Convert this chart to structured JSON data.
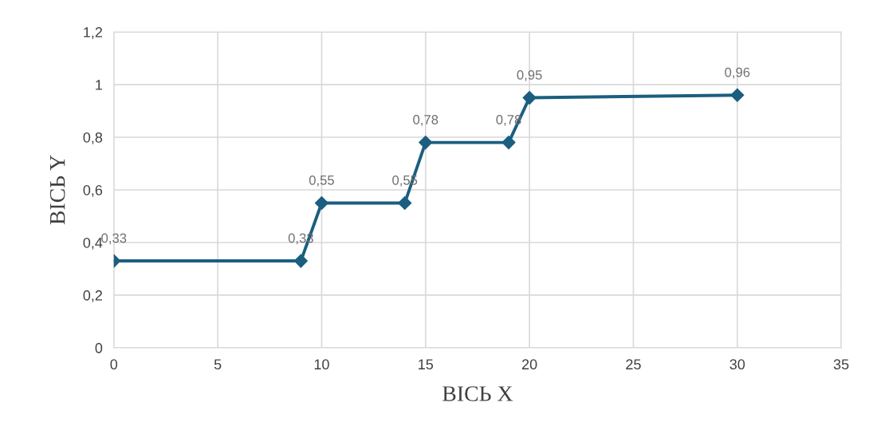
{
  "chart_data": {
    "type": "line",
    "xlabel": "ВІСЬ X",
    "ylabel": "ВІСЬ Y",
    "x": [
      0,
      9,
      10,
      14,
      15,
      19,
      20,
      30
    ],
    "series": [
      {
        "color": "#1b5e80",
        "values": [
          0.33,
          0.33,
          0.55,
          0.55,
          0.78,
          0.78,
          0.95,
          0.96
        ],
        "value_labels": [
          "0,33",
          "0,33",
          "0,55",
          "0,55",
          "0,78",
          "0,78",
          "0,95",
          "0,96"
        ]
      }
    ],
    "xlim": [
      0,
      35
    ],
    "xticks": [
      0,
      5,
      10,
      15,
      20,
      25,
      30,
      35
    ],
    "ylim": [
      0,
      1.2
    ],
    "yticks": [
      0,
      {
        "value": 0.2,
        "label": "0,2"
      },
      {
        "value": 0.4,
        "label": "0,4"
      },
      {
        "value": 0.6,
        "label": "0,6"
      },
      {
        "value": 0.8,
        "label": "0,8"
      },
      1,
      {
        "value": 1.2,
        "label": "1,2"
      }
    ],
    "grid": true,
    "marker": "diamond",
    "line_style": "solid"
  }
}
